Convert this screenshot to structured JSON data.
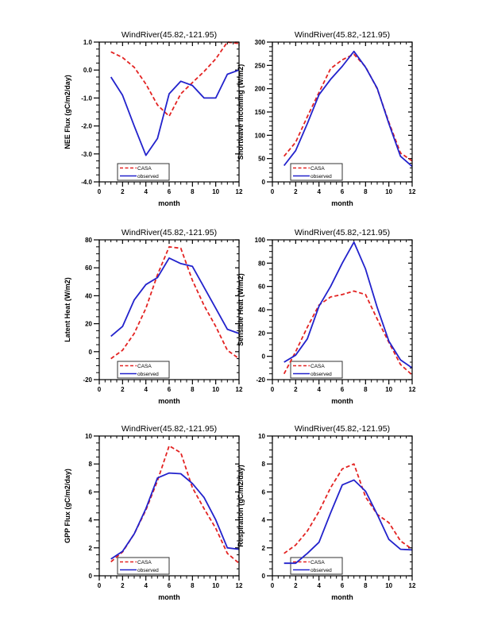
{
  "page": {
    "background": "#ffffff"
  },
  "common": {
    "title": "WindRiver(45.82,-121.95)",
    "xlabel": "month",
    "legend": {
      "casa_label": "CASA",
      "observed_label": "observed"
    },
    "colors": {
      "casa": "#e32322",
      "observed": "#2222cc",
      "frame": "#000000"
    }
  },
  "chart_data": [
    {
      "id": "nee-flux",
      "type": "line",
      "title": "WindRiver(45.82,-121.95)",
      "xlabel": "month",
      "ylabel": "NEE Flux (gC/m2/day)",
      "xlim": [
        0,
        12
      ],
      "ylim": [
        -4.0,
        1.0
      ],
      "xticks": [
        0,
        2,
        4,
        6,
        8,
        10,
        12
      ],
      "x_minor_step": 0.5,
      "y_minor_per_major": 3,
      "yticks": [
        1.0,
        0.0,
        -1.0,
        -2.0,
        -3.0,
        -4.0
      ],
      "ytick_labels": [
        "1.0",
        "0.0",
        "-1.0",
        "-2.0",
        "-3.0",
        "-4.0"
      ],
      "x": [
        1,
        2,
        3,
        4,
        5,
        6,
        7,
        8,
        9,
        10,
        11,
        12
      ],
      "grid": false,
      "legend_position": "lower-left",
      "series": [
        {
          "name": "CASA",
          "style": "dashed",
          "color_key": "casa",
          "values": [
            0.65,
            0.45,
            0.1,
            -0.5,
            -1.25,
            -1.65,
            -0.85,
            -0.45,
            -0.05,
            0.4,
            1.0,
            0.95
          ]
        },
        {
          "name": "observed",
          "style": "solid",
          "color_key": "observed",
          "values": [
            -0.25,
            -0.9,
            -2.0,
            -3.05,
            -2.45,
            -0.85,
            -0.4,
            -0.55,
            -1.0,
            -1.0,
            -0.15,
            0.0
          ]
        }
      ]
    },
    {
      "id": "shortwave-incoming",
      "type": "line",
      "title": "WindRiver(45.82,-121.95)",
      "xlabel": "month",
      "ylabel": "Shortwave Incoming (W/m2)",
      "xlim": [
        0,
        12
      ],
      "ylim": [
        0,
        300
      ],
      "xticks": [
        0,
        2,
        4,
        6,
        8,
        10,
        12
      ],
      "x_minor_step": 0.5,
      "y_minor_per_major": 4,
      "yticks": [
        300,
        250,
        200,
        150,
        100,
        50,
        0
      ],
      "ytick_labels": [
        "300",
        "250",
        "200",
        "150",
        "100",
        "50",
        "0"
      ],
      "x": [
        1,
        2,
        3,
        4,
        5,
        6,
        7,
        8,
        9,
        10,
        11,
        12
      ],
      "grid": false,
      "legend_position": "lower-left",
      "series": [
        {
          "name": "CASA",
          "style": "dashed",
          "color_key": "casa",
          "values": [
            55,
            85,
            140,
            192,
            243,
            262,
            274,
            247,
            200,
            128,
            62,
            45
          ]
        },
        {
          "name": "observed",
          "style": "solid",
          "color_key": "observed",
          "values": [
            35,
            67,
            125,
            187,
            220,
            248,
            280,
            246,
            201,
            125,
            55,
            33
          ]
        }
      ]
    },
    {
      "id": "latent-heat",
      "type": "line",
      "title": "WindRiver(45.82,-121.95)",
      "xlabel": "month",
      "ylabel": "Latent Heat (W/m2)",
      "xlim": [
        0,
        12
      ],
      "ylim": [
        -20,
        80
      ],
      "xticks": [
        0,
        2,
        4,
        6,
        8,
        10,
        12
      ],
      "x_minor_step": 0.5,
      "y_minor_per_major": 3,
      "yticks": [
        80,
        60,
        40,
        20,
        0,
        -20
      ],
      "ytick_labels": [
        "80",
        "60",
        "40",
        "20",
        "0",
        "-20"
      ],
      "x": [
        1,
        2,
        3,
        4,
        5,
        6,
        7,
        8,
        9,
        10,
        11,
        12
      ],
      "grid": false,
      "legend_position": "lower-left",
      "series": [
        {
          "name": "CASA",
          "style": "dashed",
          "color_key": "casa",
          "values": [
            -5,
            1,
            13,
            31,
            55,
            75,
            74,
            51,
            33,
            18,
            1,
            -5
          ]
        },
        {
          "name": "observed",
          "style": "solid",
          "color_key": "observed",
          "values": [
            11,
            18,
            37,
            48,
            53,
            67,
            63,
            61,
            46,
            31,
            16,
            13
          ]
        }
      ]
    },
    {
      "id": "sensible-heat",
      "type": "line",
      "title": "WindRiver(45.82,-121.95)",
      "xlabel": "month",
      "ylabel": "Sensible Heat (W/m2)",
      "xlim": [
        0,
        12
      ],
      "ylim": [
        -20,
        100
      ],
      "xticks": [
        0,
        2,
        4,
        6,
        8,
        10,
        12
      ],
      "x_minor_step": 0.5,
      "y_minor_per_major": 3,
      "yticks": [
        100,
        80,
        60,
        40,
        20,
        0,
        -20
      ],
      "ytick_labels": [
        "100",
        "80",
        "60",
        "40",
        "20",
        "0",
        "-20"
      ],
      "x": [
        1,
        2,
        3,
        4,
        5,
        6,
        7,
        8,
        9,
        10,
        11,
        12
      ],
      "grid": false,
      "legend_position": "lower-left",
      "series": [
        {
          "name": "CASA",
          "style": "dashed",
          "color_key": "casa",
          "values": [
            -15,
            4,
            25,
            44,
            51,
            53,
            56,
            53,
            32,
            12,
            -7,
            -16
          ]
        },
        {
          "name": "observed",
          "style": "solid",
          "color_key": "observed",
          "values": [
            -5,
            1,
            15,
            43,
            60,
            80,
            98,
            75,
            42,
            13,
            -3,
            -10
          ]
        }
      ]
    },
    {
      "id": "gpp-flux",
      "type": "line",
      "title": "WindRiver(45.82,-121.95)",
      "xlabel": "month",
      "ylabel": "GPP Flux (gC/m2/day)",
      "xlim": [
        0,
        12
      ],
      "ylim": [
        0,
        10
      ],
      "xticks": [
        0,
        2,
        4,
        6,
        8,
        10,
        12
      ],
      "x_minor_step": 0.5,
      "y_minor_per_major": 3,
      "yticks": [
        10,
        8,
        6,
        4,
        2,
        0
      ],
      "ytick_labels": [
        "10",
        "8",
        "6",
        "4",
        "2",
        "0"
      ],
      "x": [
        1,
        2,
        3,
        4,
        5,
        6,
        7,
        8,
        9,
        10,
        11,
        12
      ],
      "grid": false,
      "legend_position": "lower-left",
      "series": [
        {
          "name": "CASA",
          "style": "dashed",
          "color_key": "casa",
          "values": [
            1.0,
            1.7,
            3.0,
            4.7,
            6.8,
            9.3,
            8.8,
            6.3,
            4.8,
            3.4,
            1.6,
            0.9
          ]
        },
        {
          "name": "observed",
          "style": "solid",
          "color_key": "observed",
          "values": [
            1.2,
            1.75,
            3.0,
            4.8,
            7.0,
            7.35,
            7.3,
            6.6,
            5.6,
            4.0,
            2.0,
            1.9
          ]
        }
      ]
    },
    {
      "id": "respiration",
      "type": "line",
      "title": "WindRiver(45.82,-121.95)",
      "xlabel": "month",
      "ylabel": "Respiration (gC/m2/day)",
      "xlim": [
        0,
        12
      ],
      "ylim": [
        0,
        10
      ],
      "xticks": [
        0,
        2,
        4,
        6,
        8,
        10,
        12
      ],
      "x_minor_step": 0.5,
      "y_minor_per_major": 3,
      "yticks": [
        10,
        8,
        6,
        4,
        2,
        0
      ],
      "ytick_labels": [
        "10",
        "8",
        "6",
        "4",
        "2",
        "0"
      ],
      "x": [
        1,
        2,
        3,
        4,
        5,
        6,
        7,
        8,
        9,
        10,
        11,
        12
      ],
      "grid": false,
      "legend_position": "lower-left",
      "series": [
        {
          "name": "CASA",
          "style": "dashed",
          "color_key": "casa",
          "values": [
            1.6,
            2.2,
            3.2,
            4.6,
            6.3,
            7.65,
            8.0,
            5.65,
            4.4,
            3.8,
            2.5,
            1.9
          ]
        },
        {
          "name": "observed",
          "style": "solid",
          "color_key": "observed",
          "values": [
            0.9,
            0.9,
            1.6,
            2.4,
            4.5,
            6.5,
            6.85,
            6.05,
            4.4,
            2.6,
            1.9,
            1.85
          ]
        }
      ]
    }
  ]
}
